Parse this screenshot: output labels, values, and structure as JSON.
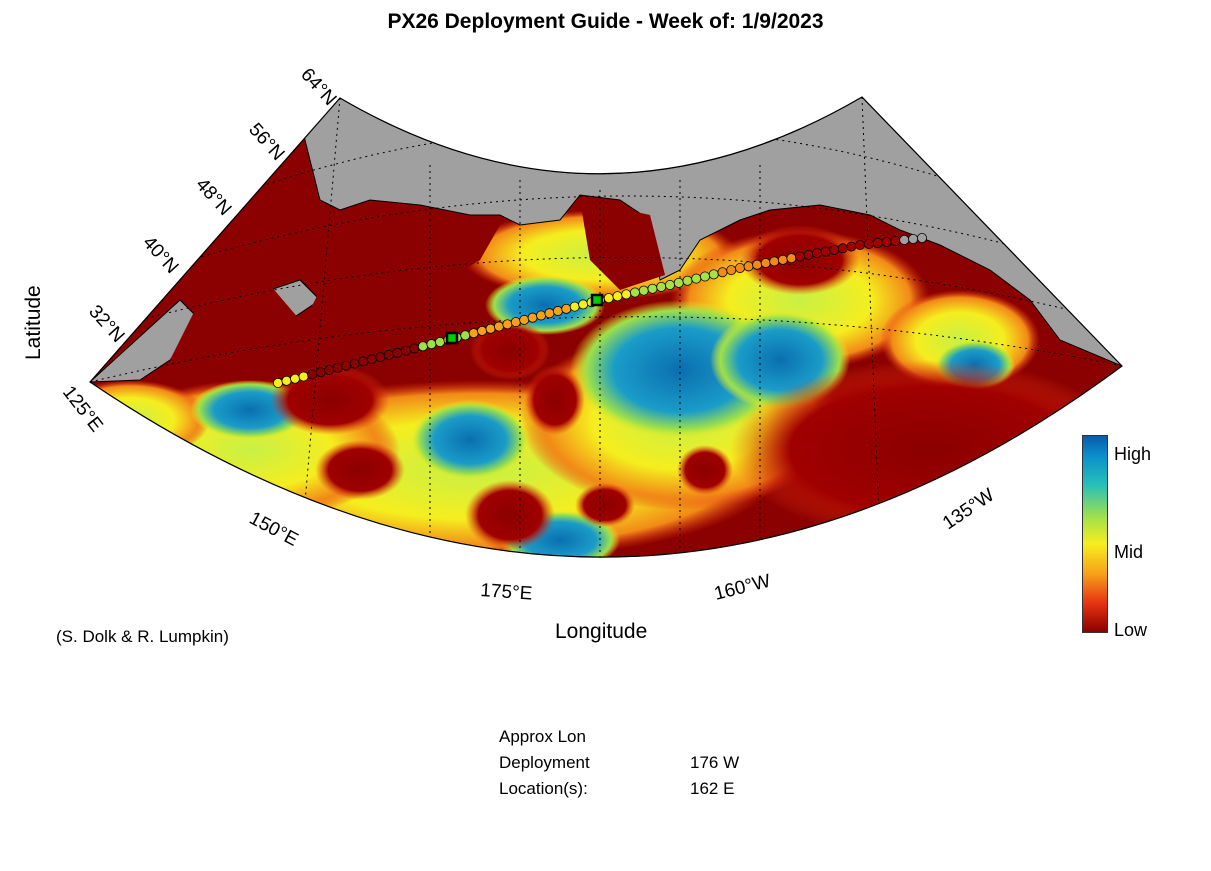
{
  "title": "PX26 Deployment Guide - Week of: 1/9/2023",
  "credit": "(S. Dolk & R. Lumpkin)",
  "axes": {
    "xlabel": "Longitude",
    "ylabel": "Latitude",
    "lat_ticks": [
      "32°N",
      "40°N",
      "48°N",
      "56°N",
      "64°N"
    ],
    "lon_ticks": [
      "125°E",
      "150°E",
      "175°E",
      "160°W",
      "135°W"
    ]
  },
  "colorbar": {
    "high_label": "High",
    "mid_label": "Mid",
    "low_label": "Low",
    "colors": [
      "#0a5aa8",
      "#27c0b8",
      "#f5ee1f",
      "#e63512",
      "#8b0000"
    ]
  },
  "deployment": {
    "heading_line1": "Approx Lon",
    "heading_line2": "Deployment",
    "heading_line3": "Location(s):",
    "location_1": "176 W",
    "location_2": "162 E"
  },
  "colors": {
    "land": "#a0a0a0",
    "low": "#8b0000",
    "mid": "#f5ee1f",
    "high": "#0a6fb0",
    "deployment_marker": "#00cc00"
  }
}
